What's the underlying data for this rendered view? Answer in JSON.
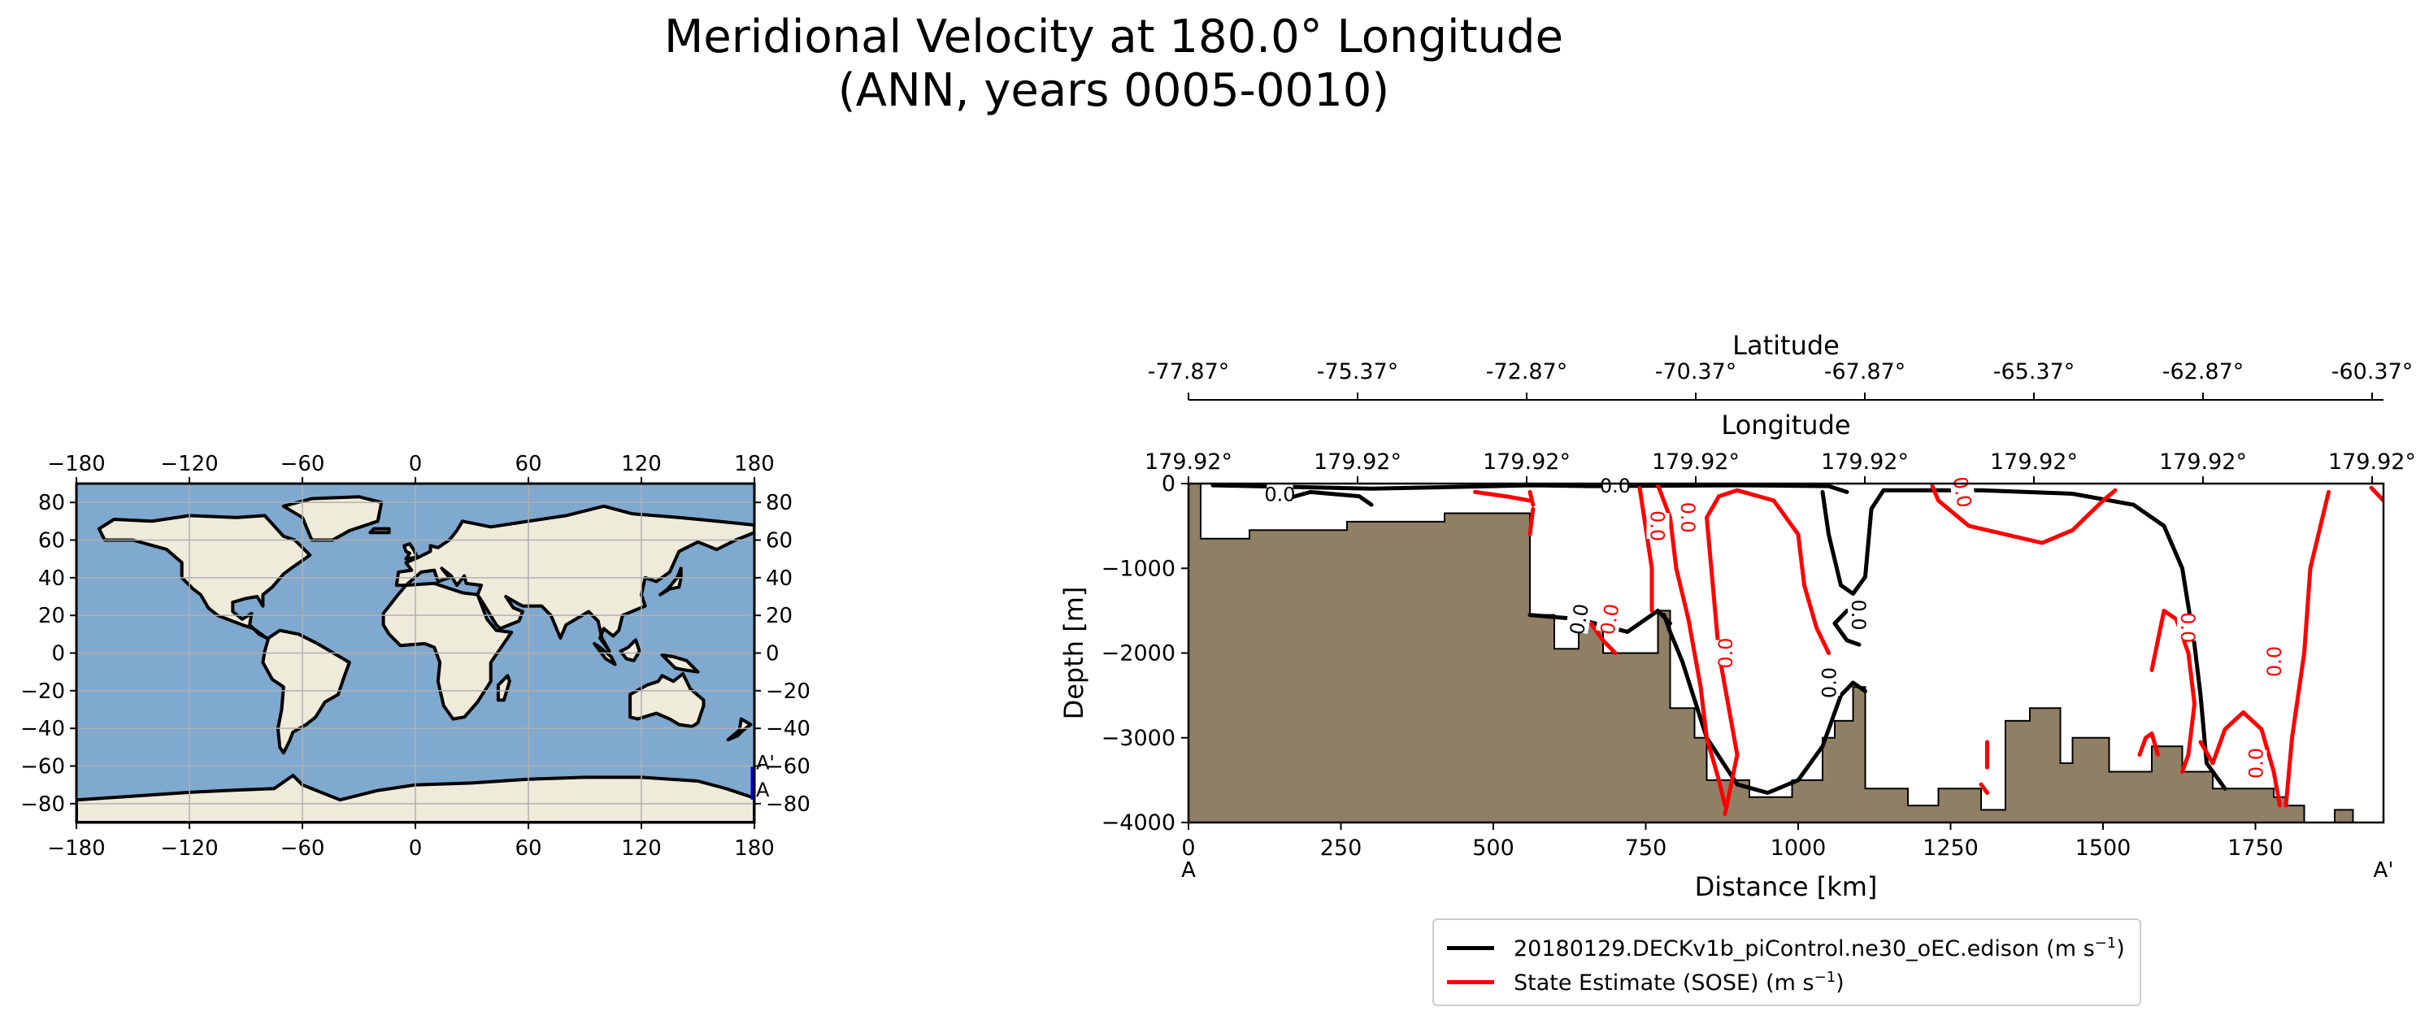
{
  "title_line1": "Meridional Velocity at 180.0° Longitude",
  "title_line2": "(ANN, years 0005-0010)",
  "colors": {
    "model": "#000000",
    "obs": "#ff0000",
    "land": "#8f7f65",
    "map_land": "#efebdb",
    "map_ocean": "#7fa9cf",
    "transect": "#0000cc"
  },
  "chart_data": [
    {
      "type": "map",
      "x_ticks": [
        "−180",
        "−120",
        "−60",
        "0",
        "60",
        "120",
        "180"
      ],
      "y_ticks_left": [
        "80",
        "60",
        "40",
        "20",
        "0",
        "−20",
        "−40",
        "−60",
        "−80"
      ],
      "y_ticks_right": [
        "80",
        "60",
        "40",
        "20",
        "0",
        "−20",
        "−40",
        "−60",
        "−80"
      ],
      "transect_start_label": "A",
      "transect_end_label": "A'",
      "transect": {
        "lon": 180.0,
        "lat_start": -77.87,
        "lat_end": -60.37
      }
    },
    {
      "type": "line",
      "xlabel": "Distance [km]",
      "ylabel": "Depth [m]",
      "xlim": [
        0,
        1960
      ],
      "ylim": [
        -4000,
        0
      ],
      "x_ticks": [
        0,
        250,
        500,
        750,
        1000,
        1250,
        1500,
        1750
      ],
      "y_ticks": [
        0,
        -1000,
        -2000,
        -3000,
        -4000
      ],
      "x_tick_labels": [
        "0",
        "250",
        "500",
        "750",
        "1000",
        "1250",
        "1500",
        "1750"
      ],
      "y_tick_labels": [
        "0",
        "−1000",
        "−2000",
        "−3000",
        "−4000"
      ],
      "start_label": "A",
      "end_label": "A'",
      "lat_axis_label": "Latitude",
      "lat_ticks": [
        "-77.87°",
        "-75.37°",
        "-72.87°",
        "-70.37°",
        "-67.87°",
        "-65.37°",
        "-62.87°",
        "-60.37°"
      ],
      "lon_axis_label": "Longitude",
      "lon_ticks": [
        "179.92°",
        "179.92°",
        "179.92°",
        "179.92°",
        "179.92°",
        "179.92°",
        "179.92°",
        "179.92°"
      ],
      "contour_level_label": "0.0",
      "bathymetry": [
        [
          0,
          0
        ],
        [
          20,
          0
        ],
        [
          20,
          -650
        ],
        [
          100,
          -650
        ],
        [
          100,
          -550
        ],
        [
          260,
          -550
        ],
        [
          260,
          -450
        ],
        [
          420,
          -450
        ],
        [
          420,
          -350
        ],
        [
          560,
          -350
        ],
        [
          560,
          -1550
        ],
        [
          600,
          -1550
        ],
        [
          600,
          -1950
        ],
        [
          640,
          -1950
        ],
        [
          640,
          -1650
        ],
        [
          680,
          -1650
        ],
        [
          680,
          -2000
        ],
        [
          770,
          -2000
        ],
        [
          770,
          -1500
        ],
        [
          790,
          -1500
        ],
        [
          790,
          -2650
        ],
        [
          830,
          -2650
        ],
        [
          830,
          -3000
        ],
        [
          850,
          -3000
        ],
        [
          850,
          -3500
        ],
        [
          920,
          -3500
        ],
        [
          920,
          -3700
        ],
        [
          990,
          -3700
        ],
        [
          990,
          -3500
        ],
        [
          1040,
          -3500
        ],
        [
          1040,
          -3000
        ],
        [
          1060,
          -3000
        ],
        [
          1060,
          -2800
        ],
        [
          1090,
          -2800
        ],
        [
          1090,
          -2400
        ],
        [
          1110,
          -2400
        ],
        [
          1110,
          -3600
        ],
        [
          1180,
          -3600
        ],
        [
          1180,
          -3800
        ],
        [
          1230,
          -3800
        ],
        [
          1230,
          -3600
        ],
        [
          1300,
          -3600
        ],
        [
          1300,
          -3850
        ],
        [
          1340,
          -3850
        ],
        [
          1340,
          -2800
        ],
        [
          1380,
          -2800
        ],
        [
          1380,
          -2650
        ],
        [
          1430,
          -2650
        ],
        [
          1430,
          -3300
        ],
        [
          1450,
          -3300
        ],
        [
          1450,
          -3000
        ],
        [
          1510,
          -3000
        ],
        [
          1510,
          -3400
        ],
        [
          1580,
          -3400
        ],
        [
          1580,
          -3100
        ],
        [
          1630,
          -3100
        ],
        [
          1630,
          -3400
        ],
        [
          1680,
          -3400
        ],
        [
          1680,
          -3600
        ],
        [
          1780,
          -3600
        ],
        [
          1780,
          -3700
        ],
        [
          1800,
          -3700
        ],
        [
          1800,
          -3800
        ],
        [
          1830,
          -3800
        ],
        [
          1830,
          -4000
        ],
        [
          0,
          -4000
        ]
      ],
      "series": [
        {
          "name": "20180129.DECKv1b_piControl.ne30_oEC.edison (m s",
          "unit_exp": "−1",
          "unit_close": ")",
          "lines": [
            [
              [
                40,
                -20
              ],
              [
                300,
                -60
              ],
              [
                560,
                -20
              ],
              [
                660,
                -30
              ],
              [
                900,
                -20
              ],
              [
                1050,
                -30
              ],
              [
                1080,
                -100
              ]
            ],
            [
              [
                1040,
                -100
              ],
              [
                1050,
                -600
              ],
              [
                1070,
                -1200
              ],
              [
                1090,
                -1300
              ],
              [
                1110,
                -1100
              ],
              [
                1120,
                -300
              ],
              [
                1140,
                -80
              ],
              [
                1300,
                -80
              ],
              [
                1450,
                -120
              ],
              [
                1550,
                -250
              ],
              [
                1600,
                -500
              ],
              [
                1630,
                -1000
              ],
              [
                1650,
                -1900
              ],
              [
                1660,
                -2500
              ],
              [
                1670,
                -3300
              ],
              [
                1700,
                -3600
              ]
            ],
            [
              [
                780,
                -1550
              ],
              [
                790,
                -1750
              ],
              [
                810,
                -2100
              ],
              [
                850,
                -3000
              ],
              [
                900,
                -3550
              ],
              [
                950,
                -3650
              ],
              [
                1000,
                -3500
              ],
              [
                1040,
                -3100
              ],
              [
                1070,
                -2500
              ],
              [
                1090,
                -2350
              ],
              [
                1110,
                -2450
              ]
            ],
            [
              [
                1080,
                -1500
              ],
              [
                1060,
                -1650
              ],
              [
                1080,
                -1850
              ],
              [
                1100,
                -1900
              ]
            ],
            [
              [
                560,
                -1550
              ],
              [
                640,
                -1600
              ],
              [
                720,
                -1750
              ],
              [
                770,
                -1500
              ],
              [
                790,
                -1650
              ]
            ],
            [
              [
                150,
                -200
              ],
              [
                200,
                -100
              ],
              [
                280,
                -150
              ],
              [
                300,
                -250
              ]
            ]
          ]
        },
        {
          "name": "State Estimate (SOSE) (m s",
          "unit_exp": "−1",
          "unit_close": ")",
          "lines": [
            [
              [
                470,
                -100
              ],
              [
                520,
                -150
              ],
              [
                560,
                -200
              ]
            ],
            [
              [
                560,
                -100
              ],
              [
                565,
                -250
              ]
            ],
            [
              [
                560,
                -600
              ],
              [
                565,
                -300
              ]
            ],
            [
              [
                740,
                -50
              ],
              [
                760,
                -1000
              ],
              [
                760,
                -1500
              ]
            ],
            [
              [
                770,
                -20
              ],
              [
                790,
                -400
              ],
              [
                800,
                -1000
              ],
              [
                820,
                -1600
              ],
              [
                840,
                -2400
              ],
              [
                850,
                -3000
              ],
              [
                870,
                -3500
              ],
              [
                880,
                -3800
              ]
            ],
            [
              [
                880,
                -3900
              ],
              [
                900,
                -3200
              ],
              [
                870,
                -2000
              ],
              [
                850,
                -400
              ],
              [
                870,
                -150
              ],
              [
                900,
                -80
              ],
              [
                960,
                -200
              ],
              [
                1000,
                -600
              ],
              [
                1010,
                -1200
              ],
              [
                1030,
                -1700
              ],
              [
                1050,
                -2000
              ]
            ],
            [
              [
                1220,
                -30
              ],
              [
                1230,
                -200
              ],
              [
                1280,
                -500
              ],
              [
                1400,
                -700
              ],
              [
                1450,
                -550
              ],
              [
                1500,
                -200
              ],
              [
                1520,
                -80
              ]
            ],
            [
              [
                660,
                -1650
              ],
              [
                680,
                -1850
              ],
              [
                700,
                -2000
              ]
            ],
            [
              [
                1310,
                -3050
              ],
              [
                1310,
                -3350
              ]
            ],
            [
              [
                1300,
                -3550
              ],
              [
                1310,
                -3650
              ]
            ],
            [
              [
                1580,
                -2200
              ],
              [
                1600,
                -1500
              ],
              [
                1620,
                -1600
              ],
              [
                1640,
                -2000
              ],
              [
                1650,
                -2600
              ],
              [
                1640,
                -3200
              ],
              [
                1630,
                -3400
              ]
            ],
            [
              [
                1560,
                -3200
              ],
              [
                1570,
                -3000
              ],
              [
                1580,
                -2950
              ],
              [
                1590,
                -3200
              ]
            ],
            [
              [
                1660,
                -3050
              ],
              [
                1680,
                -3300
              ],
              [
                1700,
                -2900
              ],
              [
                1730,
                -2700
              ],
              [
                1760,
                -2900
              ],
              [
                1780,
                -3400
              ],
              [
                1790,
                -3800
              ]
            ],
            [
              [
                1870,
                -100
              ],
              [
                1840,
                -1000
              ],
              [
                1830,
                -2000
              ],
              [
                1810,
                -3000
              ],
              [
                1800,
                -3800
              ]
            ],
            [
              [
                1940,
                -50
              ],
              [
                1960,
                -200
              ]
            ]
          ]
        }
      ]
    }
  ]
}
